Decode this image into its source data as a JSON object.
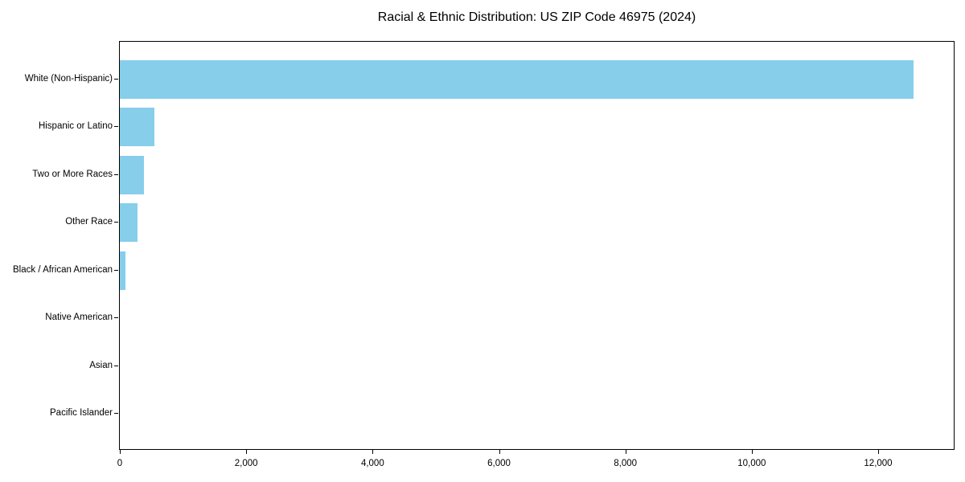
{
  "chart_data": {
    "type": "bar",
    "orientation": "horizontal",
    "title": "Racial & Ethnic Distribution: US ZIP Code 46975 (2024)",
    "categories": [
      "White (Non-Hispanic)",
      "Hispanic or Latino",
      "Two or More Races",
      "Other Race",
      "Black / African American",
      "Native American",
      "Asian",
      "Pacific Islander"
    ],
    "values": [
      12560,
      545,
      380,
      280,
      85,
      0,
      0,
      0
    ],
    "xlabel": "",
    "ylabel": "",
    "xlim": [
      0,
      13196
    ],
    "x_ticks": [
      0,
      2000,
      4000,
      6000,
      8000,
      10000,
      12000
    ],
    "x_tick_labels": [
      "0",
      "2,000",
      "4,000",
      "6,000",
      "8,000",
      "10,000",
      "12,000"
    ],
    "bar_color": "#87CEEB",
    "grid": false,
    "legend": "none"
  },
  "colors": {
    "background": "#ffffff",
    "axis": "#000000",
    "text": "#000000",
    "bar": "#87CEEB"
  }
}
